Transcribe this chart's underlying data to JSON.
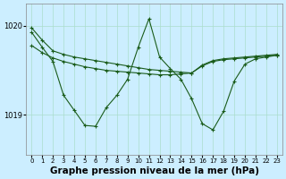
{
  "background_color": "#cceeff",
  "grid_color": "#aaddcc",
  "line_color": "#1a5c1a",
  "title": "Graphe pression niveau de la mer (hPa)",
  "title_fontsize": 7.5,
  "ylim": [
    1018.55,
    1020.25
  ],
  "yticks": [
    1019.0,
    1020.0
  ],
  "ytick_labels": [
    "1019",
    "1020"
  ],
  "xlim": [
    -0.5,
    23.5
  ],
  "xticks": [
    0,
    1,
    2,
    3,
    4,
    5,
    6,
    7,
    8,
    9,
    10,
    11,
    12,
    13,
    14,
    15,
    16,
    17,
    18,
    19,
    20,
    21,
    22,
    23
  ],
  "series1_x": [
    0,
    1,
    2,
    3,
    4,
    5,
    6,
    7,
    8,
    9,
    10,
    11,
    12,
    13,
    14,
    15,
    16,
    17,
    18,
    19,
    20,
    21,
    22,
    23
  ],
  "series1_y": [
    1019.98,
    1019.84,
    1019.72,
    1019.68,
    1019.65,
    1019.63,
    1019.61,
    1019.59,
    1019.57,
    1019.55,
    1019.53,
    1019.51,
    1019.5,
    1019.49,
    1019.48,
    1019.47,
    1019.56,
    1019.61,
    1019.63,
    1019.64,
    1019.65,
    1019.66,
    1019.67,
    1019.68
  ],
  "series2_x": [
    0,
    1,
    2,
    3,
    4,
    5,
    6,
    7,
    8,
    9,
    10,
    11,
    12,
    13,
    14,
    15,
    16,
    17,
    18,
    19,
    20,
    21,
    22,
    23
  ],
  "series2_y": [
    1019.78,
    1019.7,
    1019.64,
    1019.6,
    1019.57,
    1019.54,
    1019.52,
    1019.5,
    1019.49,
    1019.48,
    1019.47,
    1019.46,
    1019.45,
    1019.45,
    1019.46,
    1019.47,
    1019.55,
    1019.6,
    1019.62,
    1019.63,
    1019.64,
    1019.65,
    1019.66,
    1019.67
  ],
  "series3_x": [
    0,
    1,
    2,
    3,
    4,
    5,
    6,
    7,
    8,
    9,
    10,
    11,
    12,
    13,
    14,
    15,
    16,
    17,
    18,
    19,
    20,
    21,
    22,
    23
  ],
  "series3_y": [
    1019.93,
    1019.76,
    1019.6,
    1019.22,
    1019.05,
    1018.88,
    1018.87,
    1019.08,
    1019.22,
    1019.4,
    1019.76,
    1020.08,
    1019.65,
    1019.52,
    1019.4,
    1019.18,
    1018.9,
    1018.83,
    1019.04,
    1019.38,
    1019.57,
    1019.63,
    1019.65,
    1019.67
  ]
}
